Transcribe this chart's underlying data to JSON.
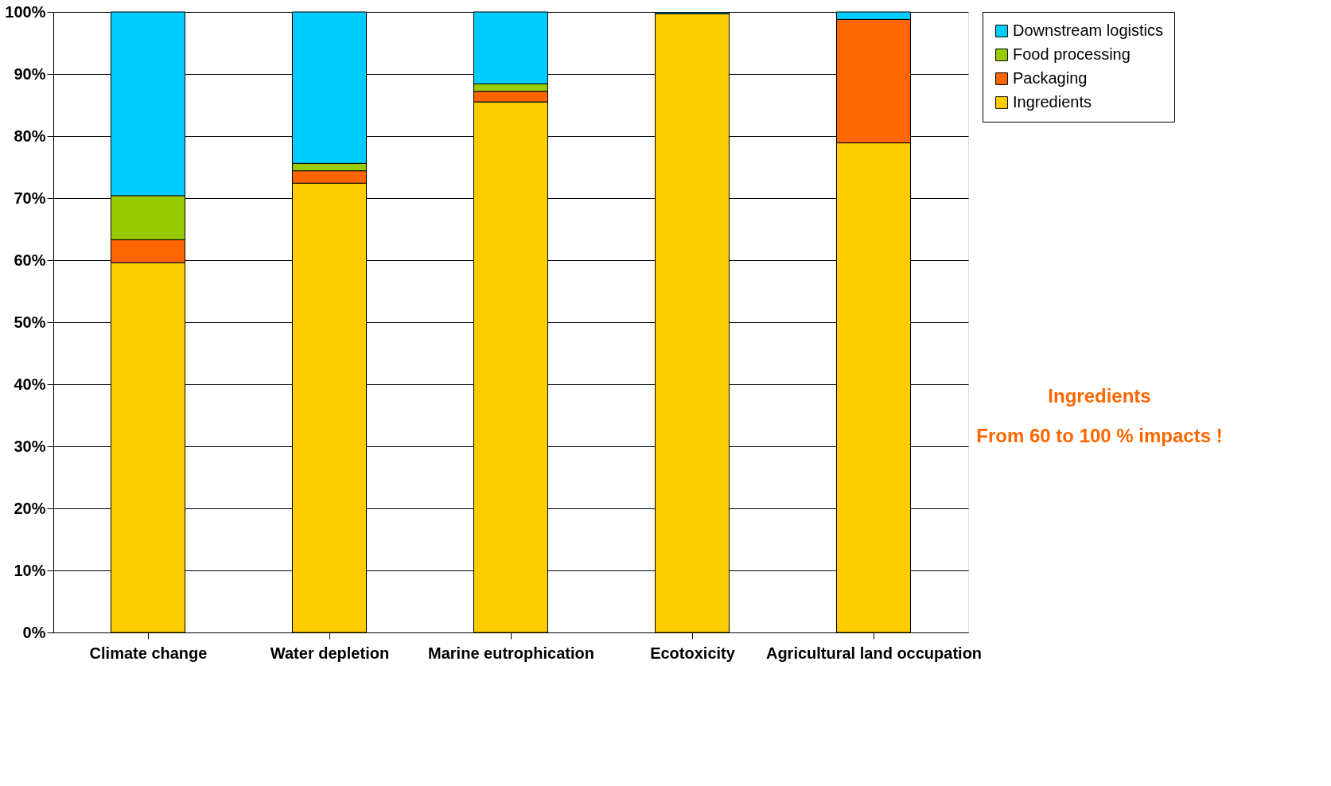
{
  "chart_data": {
    "type": "bar",
    "stacked": true,
    "categories": [
      "Climate change",
      "Water depletion",
      "Marine eutrophication",
      "Ecotoxicity",
      "Agricultural land occupation"
    ],
    "series": [
      {
        "name": "Ingredients",
        "color": "#ffcc00",
        "values": [
          59.6,
          72.4,
          85.5,
          99.7,
          78.9
        ]
      },
      {
        "name": "Packaging",
        "color": "#ff6600",
        "values": [
          3.7,
          2.0,
          1.7,
          null,
          19.9
        ]
      },
      {
        "name": "Food processing",
        "color": "#99cc00",
        "values": [
          7.1,
          1.2,
          1.2,
          null,
          null
        ]
      },
      {
        "name": "Downstream logistics",
        "color": "#00ccff",
        "values": [
          29.6,
          24.4,
          11.6,
          0.2,
          1.2
        ]
      }
    ],
    "ylim": [
      0,
      100
    ],
    "yticks": [
      {
        "value": 0,
        "label": "0%"
      },
      {
        "value": 10,
        "label": "10%"
      },
      {
        "value": 20,
        "label": "20%"
      },
      {
        "value": 30,
        "label": "30%"
      },
      {
        "value": 40,
        "label": "40%"
      },
      {
        "value": 50,
        "label": "50%"
      },
      {
        "value": 60,
        "label": "60%"
      },
      {
        "value": 70,
        "label": "70%"
      },
      {
        "value": 80,
        "label": "80%"
      },
      {
        "value": 90,
        "label": "90%"
      },
      {
        "value": 100,
        "label": "100%"
      }
    ],
    "grid": "y",
    "legend": "top right",
    "annotations": [
      "Ingredients",
      "From 60 to 100 % impacts !"
    ]
  }
}
